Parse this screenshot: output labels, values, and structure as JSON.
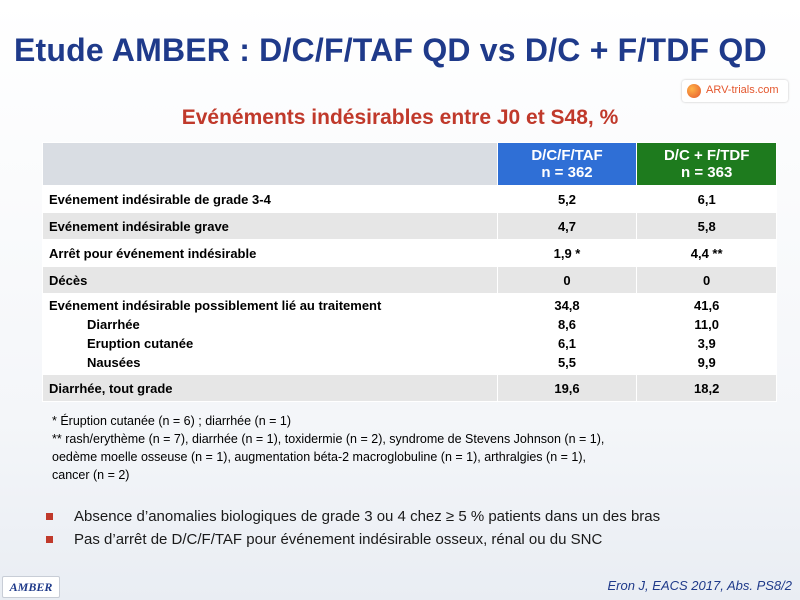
{
  "header": {
    "title": "Etude AMBER : D/C/F/TAF QD vs D/C + F/TDF QD",
    "logo_text": "ARV-trials.com",
    "subtitle": "Evénéments indésirables entre J0 et S48, %"
  },
  "table": {
    "col1": {
      "line1": "D/C/F/TAF",
      "line2": "n = 362"
    },
    "col2": {
      "line1": "D/C + F/TDF",
      "line2": "n = 363"
    },
    "rows": [
      {
        "label": "Evénement indésirable de grade 3-4",
        "v1": "5,2",
        "v2": "6,1"
      },
      {
        "label": "Evénement indésirable grave",
        "v1": "4,7",
        "v2": "5,8"
      },
      {
        "label": "Arrêt pour événement indésirable",
        "v1": "1,9 *",
        "v2": "4,4 **"
      },
      {
        "label": "Décès",
        "v1": "0",
        "v2": "0"
      }
    ],
    "related": {
      "label": "Evénement indésirable possiblement lié au traitement",
      "v1": "34,8",
      "v2": "41,6",
      "subs": [
        {
          "label": "Diarrhée",
          "v1": "8,6",
          "v2": "11,0"
        },
        {
          "label": "Eruption cutanée",
          "v1": "6,1",
          "v2": "3,9"
        },
        {
          "label": "Nausées",
          "v1": "5,5",
          "v2": "9,9"
        }
      ]
    },
    "last_row": {
      "label": "Diarrhée, tout grade",
      "v1": "19,6",
      "v2": "18,2"
    }
  },
  "footnotes": [
    "* Éruption cutanée (n = 6) ; diarrhée (n = 1)",
    "** rash/erythème (n = 7), diarrhée (n = 1), toxidermie (n = 2), syndrome de Stevens Johnson (n = 1),",
    "oedème moelle osseuse (n = 1), augmentation béta-2 macroglobuline (n = 1), arthralgies (n = 1),",
    "cancer (n = 2)"
  ],
  "bullets": [
    "Absence d’anomalies biologiques de grade 3 ou 4 chez ≥ 5 % patients dans un des bras",
    "Pas d’arrêt de D/C/F/TAF pour événement indésirable osseux, rénal ou du SNC"
  ],
  "footer": {
    "study_tag": "AMBER",
    "reference": "Eron J, EACS 2017, Abs. PS8/2"
  },
  "colors": {
    "title": "#1f3a8a",
    "subtitle": "#c0392b",
    "col1_header": "#2f6fd6",
    "col2_header": "#1e7b1e",
    "row_shade": "#e6e6e6",
    "bullet": "#c0392b"
  }
}
